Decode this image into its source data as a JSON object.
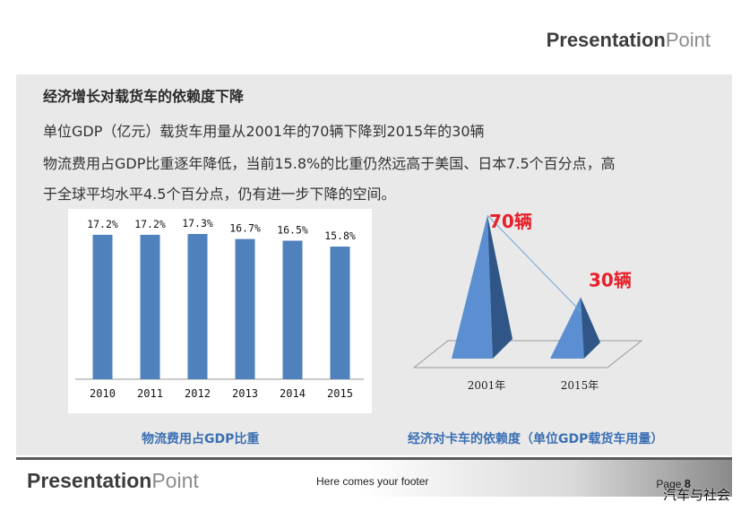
{
  "header": {
    "logo_bold": "Presentation",
    "logo_light": "Point"
  },
  "slide": {
    "heading": "经济增长对载货车的依赖度下降",
    "line1": "单位GDP（亿元）载货车用量从2001年的70辆下降到2015年的30辆",
    "line2": "物流费用占GDP比重逐年降低，当前15.8%的比重仍然远高于美国、日本7.5个百分点，高",
    "line3": "于全球平均水平4.5个百分点，仍有进一步下降的空间。"
  },
  "captions": {
    "left": "物流费用占GDP比重",
    "right": "经济对卡车的依赖度（单位GDP载货车用量）"
  },
  "footer": {
    "logo_bold": "Presentation",
    "logo_light": "Point",
    "text": "Here comes your footer",
    "page_label": "Page",
    "page_number": "8"
  },
  "watermark": "汽车与社会",
  "colors": {
    "bar": "#4f81bd",
    "caption": "#3a6fb4",
    "label_red": "#e8202a"
  },
  "chart_data": [
    {
      "type": "bar",
      "categories": [
        "2010",
        "2011",
        "2012",
        "2013",
        "2014",
        "2015"
      ],
      "values": [
        17.2,
        17.2,
        17.3,
        16.7,
        16.5,
        15.8
      ],
      "data_labels": [
        "17.2%",
        "17.2%",
        "17.3%",
        "16.7%",
        "16.5%",
        "15.8%"
      ],
      "title": "物流费用占GDP比重",
      "xlabel": "",
      "ylabel": "",
      "grid": false
    },
    {
      "type": "bar",
      "style": "3d-pyramid",
      "categories": [
        "2001年",
        "2015年"
      ],
      "values": [
        70,
        30
      ],
      "data_labels": [
        "70辆",
        "30辆"
      ],
      "title": "经济对卡车的依赖度（单位GDP载货车用量）",
      "xlabel": "",
      "ylabel": "",
      "grid": false
    }
  ]
}
